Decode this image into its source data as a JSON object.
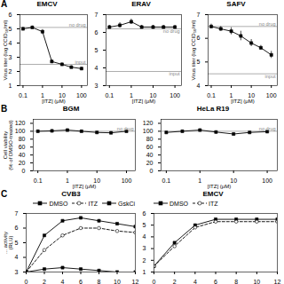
{
  "chart_data": [
    {
      "type": "line",
      "panel_label": "A",
      "title": "EMCV",
      "x": [
        0.1,
        0.3,
        1,
        3,
        10,
        30,
        100
      ],
      "values": [
        5.0,
        5.1,
        4.8,
        2.7,
        2.5,
        2.3,
        2.2
      ],
      "error": [
        0.1,
        0.1,
        0.15,
        0.1,
        0.1,
        0.1,
        0.1
      ],
      "marker": "square",
      "line_style": "solid",
      "log": "x",
      "xlabel": "[ITZ] (μM)",
      "ylabel": "Virus titer (log CCID₅₀/ml)",
      "xlim": [
        0.07,
        200
      ],
      "xticks": [
        0.1,
        1,
        10,
        100
      ],
      "ylim": [
        1,
        6
      ],
      "yticks": [
        1,
        2,
        3,
        4,
        5,
        6
      ],
      "annotations": [
        {
          "y": 5.1,
          "text": "no drug"
        },
        {
          "y": 2.5,
          "text": "input"
        }
      ]
    },
    {
      "type": "line",
      "title": "ERAV",
      "x": [
        0.1,
        0.3,
        1,
        3,
        10,
        30,
        100
      ],
      "values": [
        6.3,
        6.4,
        6.6,
        6.3,
        6.3,
        6.3,
        6.3
      ],
      "error": [
        0.1,
        0.15,
        0.15,
        0.1,
        0.1,
        0.1,
        0.1
      ],
      "marker": "square",
      "line_style": "solid",
      "log": "x",
      "xlabel": "[ITZ] (μM)",
      "xlim": [
        0.07,
        200
      ],
      "xticks": [
        0.1,
        1,
        10,
        100
      ],
      "ylim": [
        3,
        7
      ],
      "yticks": [
        3,
        4,
        5,
        6,
        7
      ],
      "annotations": [
        {
          "y": 6.2,
          "text": "no drug"
        },
        {
          "y": 3.8,
          "text": "input"
        }
      ]
    },
    {
      "type": "line",
      "title": "SAFV",
      "x": [
        0.1,
        0.3,
        1,
        3,
        10,
        30,
        100
      ],
      "values": [
        6.5,
        6.4,
        6.3,
        6.1,
        5.8,
        5.6,
        5.3
      ],
      "error": [
        0.1,
        0.1,
        0.15,
        0.2,
        0.15,
        0.1,
        0.15
      ],
      "marker": "square",
      "line_style": "solid",
      "log": "x",
      "xlabel": "[ITZ] (μM)",
      "ylabel": "Virus titer (log CCID₅₀/ml)",
      "xlim": [
        0.07,
        200
      ],
      "xticks": [
        0.1,
        1,
        10,
        100
      ],
      "ylim": [
        4,
        7
      ],
      "yticks": [
        4,
        5,
        6,
        7
      ],
      "annotations": [
        {
          "y": 6.5,
          "text": "no drug"
        },
        {
          "y": 4.5,
          "text": "input"
        }
      ]
    },
    {
      "type": "line",
      "panel_label": "B",
      "title": "BGM",
      "x": [
        0.1,
        0.3,
        1,
        3,
        10,
        30,
        100
      ],
      "values": [
        100,
        101,
        103,
        100,
        97,
        96,
        100
      ],
      "error": [
        2,
        1,
        1,
        2,
        2,
        2,
        2
      ],
      "marker": "square",
      "line_style": "solid",
      "log": "x",
      "xlabel": "[ITZ] (μM)",
      "ylabel": "Cell viability\n(% of DMSO-treated)",
      "xlim": [
        0.07,
        200
      ],
      "xticks": [
        0.1,
        1,
        10,
        100
      ],
      "ylim": [
        0,
        130
      ],
      "yticks": [
        0,
        20,
        40,
        60,
        80,
        100,
        120
      ],
      "annotations": [
        {
          "y": 100,
          "text": "no drug"
        }
      ]
    },
    {
      "type": "line",
      "title": "HeLa R19",
      "x": [
        0.1,
        0.3,
        1,
        3,
        10,
        30,
        100
      ],
      "values": [
        97,
        100,
        103,
        98,
        93,
        97,
        99
      ],
      "error": [
        2,
        2,
        1,
        2,
        3,
        2,
        2
      ],
      "marker": "square",
      "line_style": "solid",
      "log": "x",
      "xlabel": "[ITZ] (μM)",
      "xlim": [
        0.07,
        200
      ],
      "xticks": [
        0.1,
        1,
        10,
        100
      ],
      "ylim": [
        0,
        130
      ],
      "yticks": [
        0,
        20,
        40,
        60,
        80,
        100,
        120
      ],
      "annotations": [
        {
          "y": 100,
          "text": "no drug"
        }
      ]
    },
    {
      "type": "line",
      "panel_label": "C",
      "title": "CVB3",
      "x": [
        0,
        2,
        4,
        6,
        8,
        10,
        12
      ],
      "series": [
        {
          "name": "DMSO",
          "values": [
            3.0,
            5.5,
            6.5,
            6.7,
            6.5,
            6.3,
            6.1
          ],
          "marker": "square",
          "line_style": "solid"
        },
        {
          "name": "ITZ",
          "values": [
            3.0,
            4.5,
            5.5,
            6.0,
            6.0,
            5.8,
            5.7
          ],
          "marker": "open circle",
          "line_style": "dashed"
        },
        {
          "name": "GskCi",
          "values": [
            3.0,
            3.2,
            3.3,
            3.2,
            3.1,
            3.0,
            3.0
          ],
          "marker": "square",
          "line_style": "solid"
        }
      ],
      "ylabel": "... activity\n(RLU)",
      "xlim": [
        0,
        12
      ],
      "xticks": [
        0,
        2,
        4,
        6,
        8,
        10,
        12
      ],
      "ylim": [
        3,
        7
      ],
      "yticks": [
        3,
        4,
        5,
        6,
        7
      ],
      "legend": "upper right"
    },
    {
      "type": "line",
      "title": "EMCV",
      "x": [
        0,
        2,
        4,
        6,
        8,
        10,
        12
      ],
      "series": [
        {
          "name": "DMSO",
          "values": [
            1.5,
            3.5,
            5.0,
            5.5,
            5.5,
            5.5,
            5.5
          ],
          "marker": "square",
          "line_style": "solid"
        },
        {
          "name": "ITZ",
          "values": [
            1.5,
            3.2,
            4.8,
            5.3,
            5.3,
            5.3,
            5.3
          ],
          "marker": "open circle",
          "line_style": "dashed"
        }
      ],
      "xlim": [
        0,
        12
      ],
      "xticks": [
        0,
        2,
        4,
        6,
        8,
        10,
        12
      ],
      "ylim": [
        1,
        6
      ],
      "yticks": [
        1,
        2,
        3,
        4,
        5,
        6
      ],
      "legend": "upper left"
    }
  ]
}
